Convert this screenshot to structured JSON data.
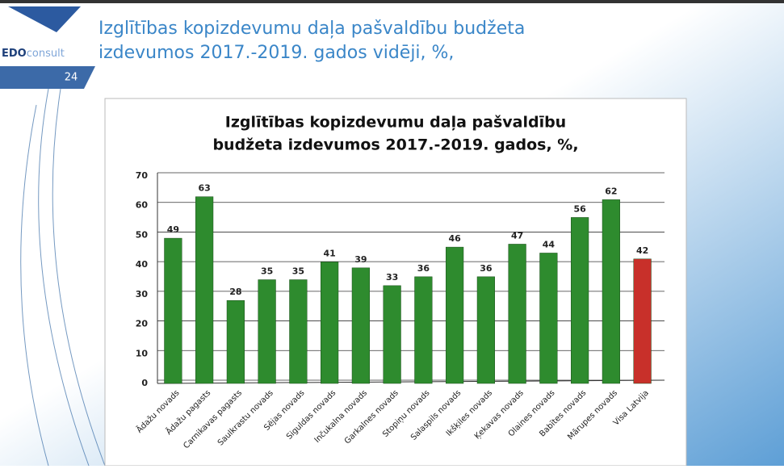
{
  "slide": {
    "logo_bold": "EDO",
    "logo_light": "consult",
    "page_number": "24",
    "title": [
      "Izglītības kopizdevumu daļa pašvaldību budžeta",
      "izdevumos 2017.-2019. gados vidēji, %,"
    ]
  },
  "chart_data": {
    "type": "bar",
    "title": [
      "Izglītības kopizdevumu daļa pašvaldību",
      "budžeta izdevumos 2017.-2019. gados, %,"
    ],
    "categories": [
      "Ādažu novads",
      "Ādažu pagasts",
      "Carnikavas pagasts",
      "Saulkrastu novads",
      "Sējas novads",
      "Siguldas novads",
      "Inčukalna novads",
      "Garkalnes novads",
      "Stopiņu novads",
      "Salaspils novads",
      "Ikšķiles novads",
      "Ķekavas novads",
      "Olaines novads",
      "Babītes novads",
      "Mārupes novads",
      "Visa Latvija"
    ],
    "values": [
      49,
      63,
      28,
      35,
      35,
      41,
      39,
      33,
      36,
      46,
      36,
      47,
      44,
      56,
      62,
      42
    ],
    "colors": [
      "#2e8b2e",
      "#2e8b2e",
      "#2e8b2e",
      "#2e8b2e",
      "#2e8b2e",
      "#2e8b2e",
      "#2e8b2e",
      "#2e8b2e",
      "#2e8b2e",
      "#2e8b2e",
      "#2e8b2e",
      "#2e8b2e",
      "#2e8b2e",
      "#2e8b2e",
      "#2e8b2e",
      "#c8302a"
    ],
    "ylim": [
      0,
      70
    ],
    "yticks": [
      0,
      10,
      20,
      30,
      40,
      50,
      60,
      70
    ],
    "grid": true
  }
}
